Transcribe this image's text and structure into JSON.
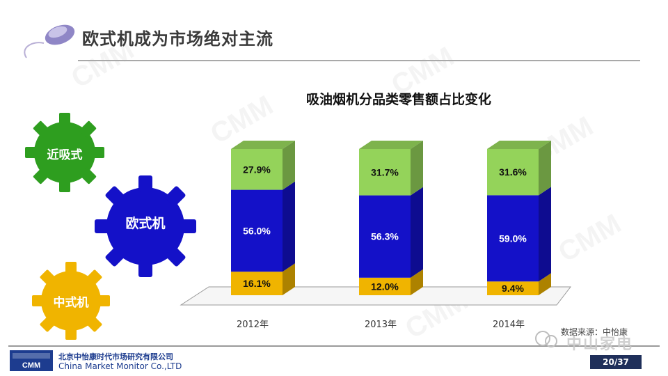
{
  "slide": {
    "title": "欧式机成为市场绝对主流",
    "page": "20/37",
    "watermark_text": "CMM"
  },
  "gears": [
    {
      "label": "近吸式",
      "color": "#2e9e1f"
    },
    {
      "label": "欧式机",
      "color": "#1411c8"
    },
    {
      "label": "中式机",
      "color": "#f0b400"
    }
  ],
  "chart_data": {
    "type": "bar",
    "stacked": true,
    "title": "吸油烟机分品类零售额占比变化",
    "categories": [
      "2012年",
      "2013年",
      "2014年"
    ],
    "series": [
      {
        "name": "中式机",
        "values": [
          16.1,
          12.0,
          9.4
        ],
        "labels": [
          "16.1%",
          "12.0%",
          "9.4%"
        ],
        "color": "#f0b400"
      },
      {
        "name": "欧式机",
        "values": [
          56.0,
          56.3,
          59.0
        ],
        "labels": [
          "56.0%",
          "56.3%",
          "59.0%"
        ],
        "color": "#1411c8"
      },
      {
        "name": "近吸式",
        "values": [
          27.9,
          31.7,
          31.6
        ],
        "labels": [
          "27.9%",
          "31.7%",
          "31.6%"
        ],
        "color": "#94d35a"
      }
    ],
    "ylim": [
      0,
      100
    ]
  },
  "footer": {
    "company_cn": "北京中怡康时代市场研究有限公司",
    "company_en": "China Market Monitor Co.,LTD",
    "logo_text": "CMM",
    "source": "数据来源：中怡康",
    "wechat_name": "中山家电"
  }
}
